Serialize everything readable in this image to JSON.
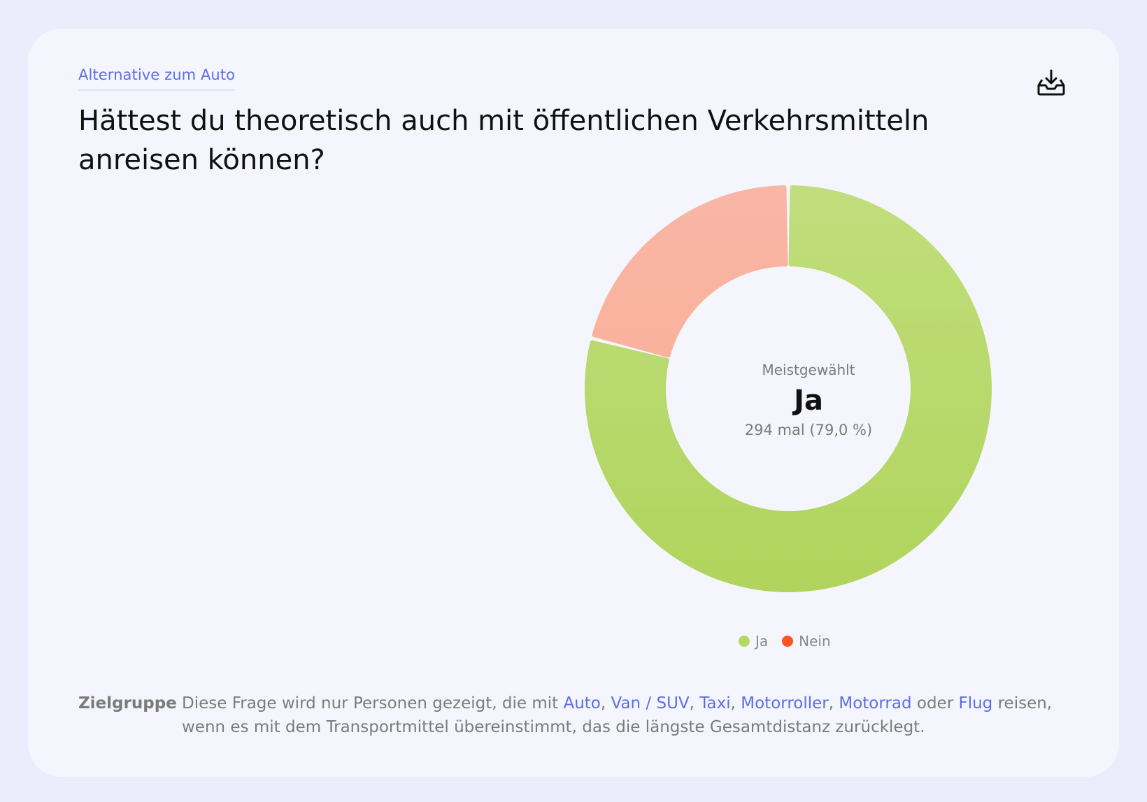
{
  "header": {
    "eyebrow": "Alternative zum Auto",
    "title": "Hättest du theoretisch auch mit öffentlichen Verkehrsmitteln anreisen können?",
    "download_icon": "download-tray-icon"
  },
  "center": {
    "label": "Meistgewählt",
    "value": "Ja",
    "sub": "294 mal (79,0 %)"
  },
  "colors": {
    "ja": "#b4d766",
    "nein_slice": "#f9b5a3",
    "nein_dot": "#fc5421",
    "accent": "#5b6ee8"
  },
  "chart_data": {
    "type": "pie",
    "variant": "donut",
    "title": "Hättest du theoretisch auch mit öffentlichen Verkehrsmitteln anreisen können?",
    "categories": [
      "Ja",
      "Nein"
    ],
    "values": [
      79.0,
      21.0
    ],
    "counts": [
      294,
      null
    ],
    "legend": [
      "Ja",
      "Nein"
    ],
    "legend_position": "bottom-center"
  },
  "footer": {
    "label": "Zielgruppe",
    "intro": "Diese Frage wird nur Personen gezeigt, die mit",
    "links": [
      "Auto",
      "Van / SUV",
      "Taxi",
      "Motorroller",
      "Motorrad",
      "Flug"
    ],
    "sep_comma": ",",
    "sep_oder": "oder",
    "outro": "reisen, wenn es mit dem Transportmittel übereinstimmt, das die längste Gesamtdistanz zurücklegt."
  }
}
